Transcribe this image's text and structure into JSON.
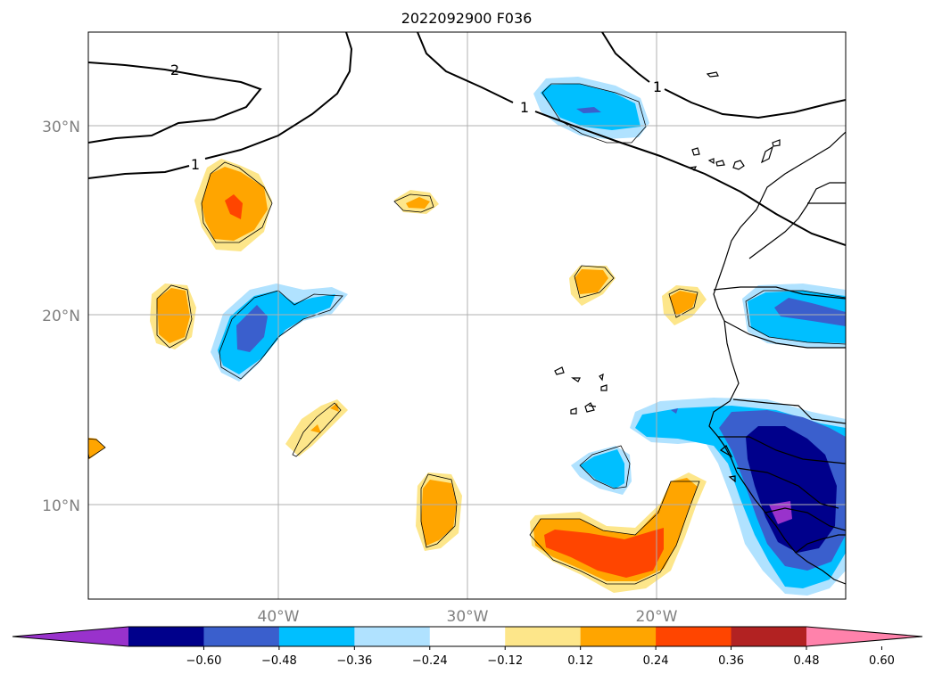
{
  "title": "2022092900 F036",
  "map": {
    "lat_labels": [
      "30°N",
      "20°N",
      "10°N"
    ],
    "lon_labels": [
      "40°W",
      "30°W",
      "20°W"
    ],
    "contour_labels": [
      "2",
      "1",
      "1",
      "1"
    ]
  },
  "colorbar": {
    "ticks": [
      "−0.60",
      "−0.48",
      "−0.36",
      "−0.24",
      "−0.12",
      "0.12",
      "0.24",
      "0.36",
      "0.48",
      "0.60"
    ],
    "colors": [
      "#9932cc",
      "#00008b",
      "#3a5fcd",
      "#00bfff",
      "#b0e2ff",
      "#ffffff",
      "#fde68a",
      "#ffa500",
      "#ff4500",
      "#b22222",
      "#ff82ab"
    ],
    "extend": "both"
  },
  "palette": {
    "land_line": "#000000",
    "grid": "#b0b0b0"
  }
}
